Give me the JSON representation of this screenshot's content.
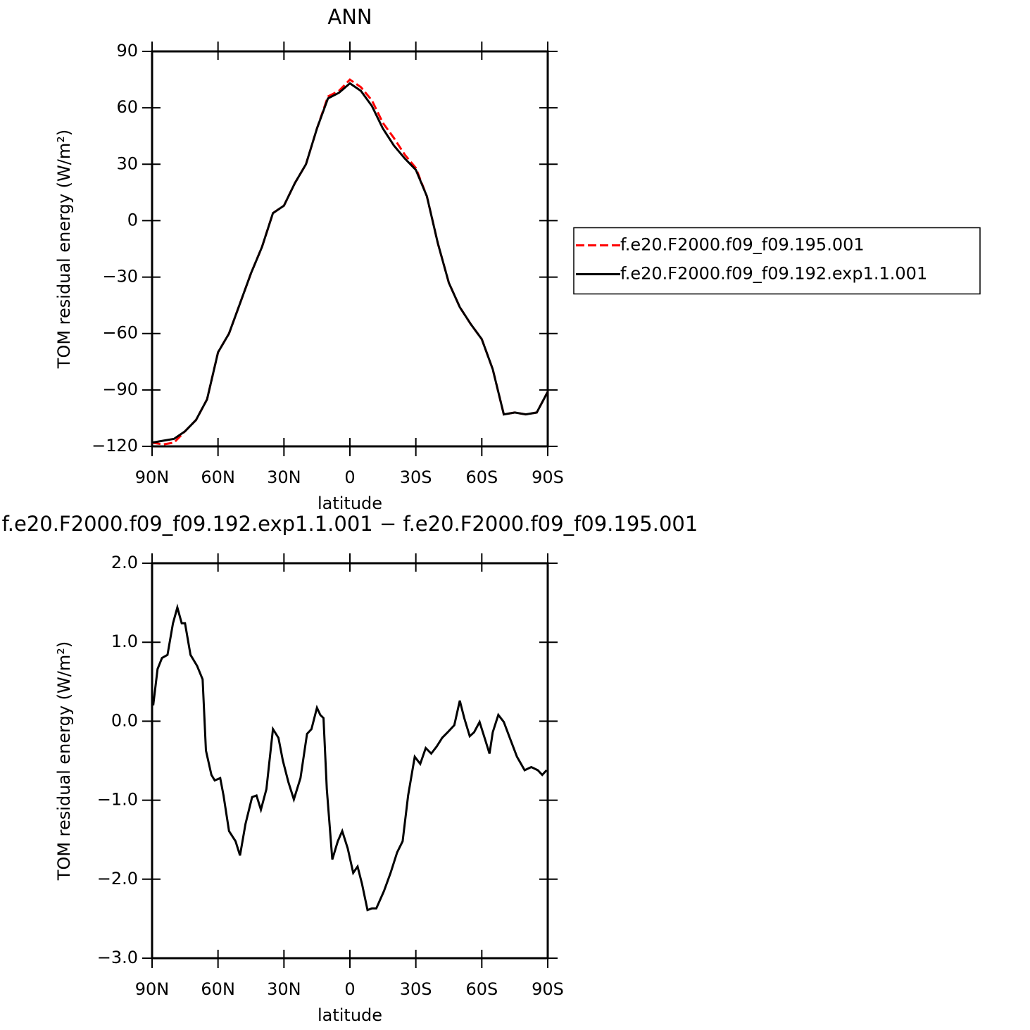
{
  "chart_data": [
    {
      "type": "line",
      "title": "ANN",
      "xlabel": "latitude",
      "ylabel": "TOM residual energy (W/m²)",
      "x": [
        90,
        85,
        80,
        75,
        70,
        65,
        60,
        55,
        50,
        45,
        40,
        35,
        30,
        25,
        20,
        15,
        10,
        5,
        0,
        -5,
        -10,
        -15,
        -20,
        -25,
        -30,
        -35,
        -40,
        -45,
        -50,
        -55,
        -60,
        -65,
        -70,
        -75,
        -80,
        -85,
        -90
      ],
      "xlim": [
        90,
        -90
      ],
      "xticks": [
        {
          "value": 90,
          "label": "90N"
        },
        {
          "value": 60,
          "label": "60N"
        },
        {
          "value": 30,
          "label": "30N"
        },
        0,
        {
          "value": -30,
          "label": "30S"
        },
        {
          "value": -60,
          "label": "60S"
        },
        {
          "value": -90,
          "label": "90S"
        }
      ],
      "ylim": [
        -120,
        90
      ],
      "yticks": [
        {
          "value": -120,
          "label": "−120"
        },
        {
          "value": -90,
          "label": "−90"
        },
        {
          "value": -60,
          "label": "−60"
        },
        {
          "value": -30,
          "label": "−30"
        },
        0,
        30,
        60,
        90
      ],
      "legend": "right",
      "series": [
        {
          "name": "f.e20.F2000.f09_f09.195.001",
          "color": "#ff0000",
          "linestyle": "dashed",
          "values": [
            -118,
            -119,
            -118,
            -112,
            -106,
            -95,
            -70,
            -60,
            -44,
            -28,
            -14,
            4,
            8,
            20,
            30,
            49,
            66,
            69,
            75,
            71,
            64,
            52,
            44,
            35,
            28,
            13,
            -12,
            -33,
            -46,
            -55,
            -63,
            -79,
            -103,
            -102,
            -103,
            -102,
            -91
          ]
        },
        {
          "name": "f.e20.F2000.f09_f09.192.exp1.1.001",
          "color": "#000000",
          "linestyle": "solid",
          "values": [
            -118,
            -117,
            -116,
            -112,
            -106,
            -95,
            -70,
            -60,
            -44,
            -28,
            -14,
            4,
            8,
            20,
            30,
            49,
            65,
            68,
            73,
            69,
            61,
            49,
            40,
            33,
            27,
            13,
            -12,
            -33,
            -46,
            -55,
            -63,
            -79,
            -103,
            -102,
            -103,
            -102,
            -91
          ]
        }
      ]
    },
    {
      "type": "line",
      "title": "f.e20.F2000.f09_f09.192.exp1.1.001 − f.e20.F2000.f09_f09.195.001",
      "xlabel": "latitude",
      "ylabel": "TOM residual energy (W/m²)",
      "x": [
        89.5,
        87.5,
        85.5,
        83,
        80.5,
        78.5,
        76.5,
        75,
        72.5,
        69.5,
        67,
        65.5,
        63,
        61.5,
        59,
        57.5,
        55,
        52,
        50,
        47.5,
        44.5,
        42.5,
        40.5,
        38,
        35,
        32.5,
        30.5,
        28,
        25.5,
        22.5,
        19.5,
        17.5,
        15,
        13.5,
        12,
        10.5,
        8,
        5.5,
        3.5,
        1,
        -1.5,
        -3.5,
        -5.5,
        -8,
        -10,
        -12,
        -15.5,
        -18.5,
        -21.5,
        -24,
        -26.5,
        -29.5,
        -32,
        -34.5,
        -37,
        -39.5,
        -42,
        -44.5,
        -47.5,
        -50,
        -52,
        -54.5,
        -56.5,
        -59,
        -61.5,
        -63.5,
        -65,
        -67.5,
        -70,
        -73,
        -76,
        -79.5,
        -82.5,
        -85.5,
        -87.5,
        -89.5
      ],
      "xlim": [
        90,
        -90
      ],
      "xticks": [
        {
          "value": 90,
          "label": "90N"
        },
        {
          "value": 60,
          "label": "60N"
        },
        {
          "value": 30,
          "label": "30N"
        },
        0,
        {
          "value": -30,
          "label": "30S"
        },
        {
          "value": -60,
          "label": "60S"
        },
        {
          "value": -90,
          "label": "90S"
        }
      ],
      "ylim": [
        -3,
        2
      ],
      "yticks": [
        {
          "value": -3,
          "label": "−3.0"
        },
        {
          "value": -2,
          "label": "−2.0"
        },
        {
          "value": -1,
          "label": "−1.0"
        },
        {
          "value": 0,
          "label": "0.0"
        },
        {
          "value": 1,
          "label": "1.0"
        },
        {
          "value": 2,
          "label": "2.0"
        }
      ],
      "series": [
        {
          "color": "#000000",
          "linestyle": "solid",
          "values": [
            0.2,
            0.66,
            0.8,
            0.84,
            1.24,
            1.44,
            1.24,
            1.24,
            0.84,
            0.7,
            0.53,
            -0.37,
            -0.68,
            -0.75,
            -0.72,
            -0.94,
            -1.39,
            -1.52,
            -1.7,
            -1.3,
            -0.96,
            -0.94,
            -1.12,
            -0.86,
            -0.1,
            -0.21,
            -0.5,
            -0.77,
            -0.99,
            -0.72,
            -0.16,
            -0.1,
            0.17,
            0.08,
            0.04,
            -0.86,
            -1.75,
            -1.52,
            -1.39,
            -1.61,
            -1.92,
            -1.84,
            -2.06,
            -2.39,
            -2.37,
            -2.37,
            -2.15,
            -1.92,
            -1.66,
            -1.52,
            -0.94,
            -0.45,
            -0.54,
            -0.34,
            -0.41,
            -0.32,
            -0.21,
            -0.14,
            -0.05,
            0.26,
            0.04,
            -0.19,
            -0.14,
            -0.01,
            -0.23,
            -0.41,
            -0.14,
            0.08,
            -0.01,
            -0.23,
            -0.45,
            -0.62,
            -0.58,
            -0.62,
            -0.68,
            -0.62
          ]
        }
      ]
    }
  ]
}
